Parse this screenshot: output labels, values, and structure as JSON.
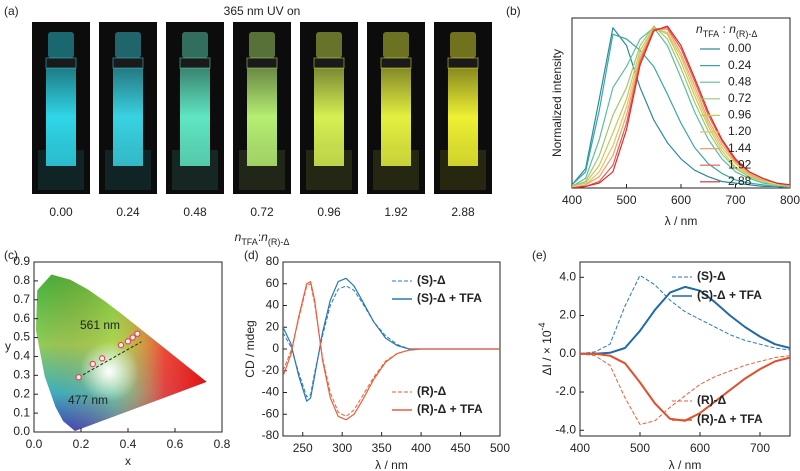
{
  "panel_labels": [
    "(a)",
    "(b)",
    "(c)",
    "(d)",
    "(e)"
  ],
  "photo_panel": {
    "title": "365 nm UV on",
    "samples": [
      "0.00",
      "0.24",
      "0.48",
      "0.72",
      "0.96",
      "1.92",
      "2.88"
    ],
    "glow_colors": [
      "#2fd6e8",
      "#39d2e2",
      "#5fe6c2",
      "#b6ee72",
      "#d6f052",
      "#e4f040",
      "#eef032"
    ],
    "x_label": [
      "n",
      "TFA",
      ":",
      "n",
      "(R)-Δ"
    ]
  },
  "chart_data": [
    {
      "type": "line",
      "y_label": "Normalized intensity",
      "x_label": "λ / nm",
      "x": [
        400,
        425,
        450,
        475,
        500,
        525,
        550,
        575,
        600,
        625,
        650,
        675,
        700,
        725,
        750,
        775,
        800
      ],
      "xlim": [
        400,
        800
      ],
      "xticks": [
        400,
        500,
        600,
        700,
        800
      ],
      "ylim": [
        0,
        1.05
      ],
      "legend_title": [
        "n",
        "TFA",
        " : ",
        "n",
        "(R)-Δ"
      ],
      "series": [
        {
          "name": "0.00",
          "color": "#2a8c9c",
          "values": [
            0.02,
            0.12,
            0.55,
            0.99,
            0.88,
            0.62,
            0.42,
            0.28,
            0.18,
            0.11,
            0.07,
            0.04,
            0.03,
            0.02,
            0.01,
            0.01,
            0.0
          ]
        },
        {
          "name": "0.24",
          "color": "#38a8a2",
          "values": [
            0.02,
            0.1,
            0.48,
            0.95,
            0.92,
            0.85,
            0.75,
            0.58,
            0.4,
            0.25,
            0.15,
            0.09,
            0.05,
            0.03,
            0.02,
            0.01,
            0.01
          ]
        },
        {
          "name": "0.48",
          "color": "#5cbf98",
          "values": [
            0.01,
            0.06,
            0.3,
            0.62,
            0.75,
            0.92,
            0.99,
            0.88,
            0.68,
            0.47,
            0.3,
            0.18,
            0.1,
            0.06,
            0.03,
            0.02,
            0.01
          ]
        },
        {
          "name": "0.72",
          "color": "#9ec86e",
          "values": [
            0.01,
            0.04,
            0.2,
            0.45,
            0.62,
            0.88,
            1.0,
            0.92,
            0.74,
            0.53,
            0.35,
            0.21,
            0.12,
            0.07,
            0.04,
            0.02,
            0.01
          ]
        },
        {
          "name": "0.96",
          "color": "#c8c85a",
          "values": [
            0.01,
            0.03,
            0.14,
            0.34,
            0.55,
            0.85,
            0.99,
            0.95,
            0.78,
            0.57,
            0.38,
            0.23,
            0.13,
            0.08,
            0.04,
            0.02,
            0.01
          ]
        },
        {
          "name": "1.20",
          "color": "#e8c25e",
          "values": [
            0.0,
            0.02,
            0.1,
            0.26,
            0.5,
            0.82,
            0.99,
            0.96,
            0.81,
            0.6,
            0.4,
            0.25,
            0.15,
            0.08,
            0.05,
            0.03,
            0.01
          ]
        },
        {
          "name": "1.44",
          "color": "#f0a070",
          "values": [
            0.0,
            0.02,
            0.07,
            0.2,
            0.45,
            0.8,
            0.98,
            0.98,
            0.83,
            0.63,
            0.42,
            0.27,
            0.16,
            0.09,
            0.05,
            0.03,
            0.01
          ]
        },
        {
          "name": "1.92",
          "color": "#e85a4a",
          "values": [
            0.0,
            0.01,
            0.04,
            0.14,
            0.4,
            0.78,
            0.98,
            0.99,
            0.86,
            0.66,
            0.45,
            0.29,
            0.17,
            0.1,
            0.06,
            0.03,
            0.02
          ]
        },
        {
          "name": "2.88",
          "color": "#d62e2e",
          "values": [
            0.0,
            0.01,
            0.03,
            0.1,
            0.36,
            0.76,
            0.97,
            1.0,
            0.88,
            0.68,
            0.47,
            0.3,
            0.18,
            0.1,
            0.06,
            0.03,
            0.02
          ]
        }
      ]
    },
    {
      "type": "scatter",
      "x_label": "x",
      "y_label": "y",
      "x": [
        0.19,
        0.25,
        0.29,
        0.37,
        0.4,
        0.42,
        0.44
      ],
      "values": [
        0.29,
        0.36,
        0.39,
        0.46,
        0.48,
        0.5,
        0.52
      ],
      "color": "#e04858",
      "annotations": [
        "561 nm",
        "477 nm"
      ],
      "xlim": [
        0,
        0.8
      ],
      "xticks": [
        {
          "value": 0,
          "label": "0.0"
        },
        0.2,
        0.4,
        0.6,
        0.8
      ],
      "ylim": [
        0,
        0.9
      ],
      "yticks": [
        {
          "value": 0,
          "label": "0.0"
        },
        0.1,
        0.2,
        0.3,
        0.4,
        0.5,
        0.6,
        0.7,
        0.8,
        0.9
      ]
    },
    {
      "type": "line",
      "y_label": "CD / mdeg",
      "x_label": "λ / nm",
      "x": [
        225,
        235,
        245,
        255,
        260,
        265,
        275,
        285,
        295,
        305,
        315,
        325,
        340,
        355,
        370,
        385,
        400,
        425,
        450,
        475,
        500
      ],
      "xlim": [
        225,
        500
      ],
      "xticks": [
        250,
        300,
        350,
        400,
        450,
        500
      ],
      "ylim": [
        -80,
        80
      ],
      "yticks": [
        -80,
        -60,
        -40,
        -20,
        0,
        20,
        40,
        60,
        80
      ],
      "series": [
        {
          "name": "(S)-Δ",
          "color": "#2a78b4",
          "dashed": true,
          "values": [
            15,
            2,
            -22,
            -44,
            -42,
            -22,
            12,
            40,
            55,
            58,
            54,
            43,
            25,
            12,
            4,
            0,
            0,
            0,
            0,
            0,
            0
          ]
        },
        {
          "name": "(S)-Δ + TFA",
          "color": "#2a78b4",
          "dashed": false,
          "values": [
            20,
            5,
            -25,
            -48,
            -45,
            -25,
            15,
            45,
            62,
            65,
            58,
            45,
            25,
            10,
            3,
            0,
            0,
            0,
            0,
            0,
            0
          ]
        },
        {
          "name": "(R)-Δ",
          "color": "#ea5f3a",
          "dashed": true,
          "values": [
            -20,
            -2,
            28,
            58,
            60,
            42,
            -8,
            -40,
            -58,
            -62,
            -56,
            -44,
            -26,
            -11,
            -4,
            -1,
            0,
            0,
            0,
            0,
            0
          ]
        },
        {
          "name": "(R)-Δ + TFA",
          "color": "#ea5f3a",
          "dashed": false,
          "values": [
            -25,
            -5,
            30,
            60,
            62,
            45,
            -10,
            -45,
            -62,
            -65,
            -60,
            -48,
            -28,
            -12,
            -4,
            -1,
            0,
            0,
            0,
            0,
            0
          ]
        }
      ]
    },
    {
      "type": "line",
      "y_label": [
        "ΔI / × 10",
        "-4"
      ],
      "x_label": "λ / nm",
      "x": [
        400,
        425,
        450,
        475,
        500,
        525,
        550,
        575,
        600,
        625,
        650,
        675,
        700,
        725,
        750
      ],
      "xlim": [
        400,
        750
      ],
      "xticks": [
        400,
        500,
        600,
        700
      ],
      "ylim": [
        -4.3,
        4.8
      ],
      "yticks": [
        {
          "value": -4,
          "label": "-4.0"
        },
        {
          "value": -2,
          "label": "-2.0"
        },
        {
          "value": 0,
          "label": "0.0"
        },
        {
          "value": 2,
          "label": "2.0"
        },
        {
          "value": 4,
          "label": "4.0"
        }
      ],
      "series": [
        {
          "name": "(S)-Δ",
          "color": "#2a78b4",
          "dashed": true,
          "values": [
            0,
            0.1,
            0.5,
            2.5,
            4.1,
            3.6,
            2.8,
            2.2,
            1.8,
            1.4,
            1.0,
            0.7,
            0.5,
            0.3,
            0.2
          ]
        },
        {
          "name": "(S)-Δ + TFA",
          "color": "#1f6aa8",
          "dashed": false,
          "values": [
            0,
            0,
            0.05,
            0.3,
            1.2,
            2.3,
            3.2,
            3.5,
            3.3,
            2.7,
            2.0,
            1.4,
            0.9,
            0.5,
            0.3
          ]
        },
        {
          "name": "(R)-Δ",
          "color": "#ea5f3a",
          "dashed": true,
          "values": [
            0,
            -0.1,
            -0.6,
            -2.3,
            -3.7,
            -3.5,
            -2.8,
            -2.2,
            -1.6,
            -1.2,
            -0.9,
            -0.6,
            -0.4,
            -0.2,
            -0.1
          ]
        },
        {
          "name": "(R)-Δ + TFA",
          "color": "#e0502c",
          "dashed": false,
          "values": [
            0,
            0,
            -0.1,
            -0.5,
            -1.5,
            -2.6,
            -3.4,
            -3.5,
            -3.1,
            -2.5,
            -1.9,
            -1.3,
            -0.8,
            -0.4,
            -0.2
          ]
        }
      ]
    }
  ]
}
